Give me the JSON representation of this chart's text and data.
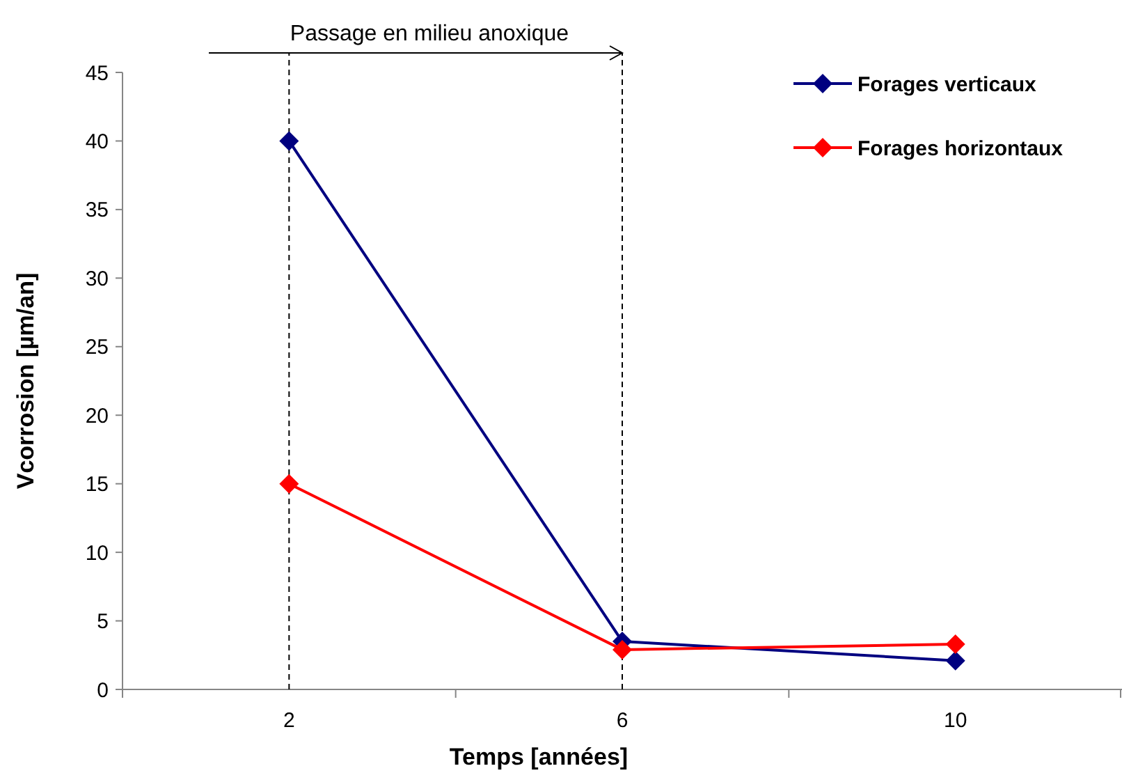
{
  "chart_data": {
    "type": "line",
    "xlabel": "Temps [années]",
    "ylabel": "Vcorrosion [µm/an]",
    "categories": [
      "2",
      "6",
      "10"
    ],
    "series": [
      {
        "name": "Forages verticaux",
        "color": "#000080",
        "values": [
          40,
          3.5,
          2.1
        ]
      },
      {
        "name": "Forages horizontaux",
        "color": "#ff0000",
        "values": [
          15,
          2.9,
          3.3
        ]
      }
    ],
    "ylim": [
      0,
      45
    ],
    "yticks": [
      0,
      5,
      10,
      15,
      20,
      25,
      30,
      35,
      40,
      45
    ],
    "grid": false,
    "legend": "top right",
    "marker": "diamond",
    "line_style": "solid",
    "ref_lines": [
      {
        "axis": "x",
        "value": "2",
        "color": "#000000",
        "line_style": "dashed"
      },
      {
        "axis": "x",
        "value": "6",
        "color": "#000000",
        "line_style": "dashed"
      }
    ],
    "annotations": [
      "Passage en milieu anoxique"
    ]
  }
}
